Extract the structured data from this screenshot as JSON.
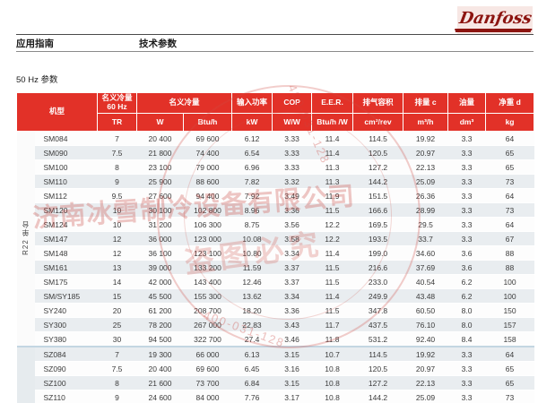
{
  "page": {
    "brand": "Danfoss",
    "breadcrumb_left": "应用指南",
    "breadcrumb_right": "技术参数",
    "section_title": "50 Hz 参数"
  },
  "table": {
    "group_label_r22": "R22 单台",
    "header": {
      "model": "机型",
      "nominal_60hz_line1": "名义冷量",
      "nominal_60hz_line2": "60 Hz",
      "nominal": "名义冷量",
      "input_power": "输入功率",
      "cop": "COP",
      "eer": "E.E.R.",
      "displacement_vol": "排气容积",
      "displacement": "排量 c",
      "oil": "油量",
      "net_weight": "净重 d",
      "units": {
        "tr": "TR",
        "w": "W",
        "btuh": "Btu/h",
        "kw": "kW",
        "ww": "W/W",
        "btuhw": "Btu/h /W",
        "cm3rev": "cm³/rev",
        "m3h": "m³/h",
        "dm3": "dm³",
        "kg": "kg"
      }
    },
    "rows": [
      {
        "group": "R22",
        "model": "SM084",
        "tr": "7",
        "w": "20 400",
        "btuh": "69 600",
        "kw": "6.12",
        "cop": "3.33",
        "eer": "11.4",
        "cm3": "114.5",
        "m3h": "19.92",
        "dm3": "3.3",
        "kg": "64"
      },
      {
        "group": "R22",
        "model": "SM090",
        "tr": "7.5",
        "w": "21 800",
        "btuh": "74 400",
        "kw": "6.54",
        "cop": "3.33",
        "eer": "11.4",
        "cm3": "120.5",
        "m3h": "20.97",
        "dm3": "3.3",
        "kg": "65"
      },
      {
        "group": "R22",
        "model": "SM100",
        "tr": "8",
        "w": "23 100",
        "btuh": "79 000",
        "kw": "6.96",
        "cop": "3.33",
        "eer": "11.3",
        "cm3": "127.2",
        "m3h": "22.13",
        "dm3": "3.3",
        "kg": "65"
      },
      {
        "group": "R22",
        "model": "SM110",
        "tr": "9",
        "w": "25 900",
        "btuh": "88 600",
        "kw": "7.82",
        "cop": "3.32",
        "eer": "11.3",
        "cm3": "144.2",
        "m3h": "25.09",
        "dm3": "3.3",
        "kg": "73"
      },
      {
        "group": "R22",
        "model": "SM112",
        "tr": "9.5",
        "w": "27 600",
        "btuh": "94 400",
        "kw": "7.92",
        "cop": "3.49",
        "eer": "11.9",
        "cm3": "151.5",
        "m3h": "26.36",
        "dm3": "3.3",
        "kg": "64"
      },
      {
        "group": "R22",
        "model": "SM120",
        "tr": "10",
        "w": "30 100",
        "btuh": "102 800",
        "kw": "8.96",
        "cop": "3.36",
        "eer": "11.5",
        "cm3": "166.6",
        "m3h": "28.99",
        "dm3": "3.3",
        "kg": "73"
      },
      {
        "group": "R22",
        "model": "SM124",
        "tr": "10",
        "w": "31 200",
        "btuh": "106 300",
        "kw": "8.75",
        "cop": "3.56",
        "eer": "12.2",
        "cm3": "169.5",
        "m3h": "29.5",
        "dm3": "3.3",
        "kg": "64"
      },
      {
        "group": "R22",
        "model": "SM147",
        "tr": "12",
        "w": "36 000",
        "btuh": "123 000",
        "kw": "10.08",
        "cop": "3.58",
        "eer": "12.2",
        "cm3": "193.5",
        "m3h": "33.7",
        "dm3": "3.3",
        "kg": "67"
      },
      {
        "group": "R22",
        "model": "SM148",
        "tr": "12",
        "w": "36 100",
        "btuh": "123 100",
        "kw": "10.80",
        "cop": "3.34",
        "eer": "11.4",
        "cm3": "199.0",
        "m3h": "34.60",
        "dm3": "3.6",
        "kg": "88"
      },
      {
        "group": "R22",
        "model": "SM161",
        "tr": "13",
        "w": "39 000",
        "btuh": "133 200",
        "kw": "11.59",
        "cop": "3.37",
        "eer": "11.5",
        "cm3": "216.6",
        "m3h": "37.69",
        "dm3": "3.6",
        "kg": "88"
      },
      {
        "group": "R22",
        "model": "SM175",
        "tr": "14",
        "w": "42 000",
        "btuh": "143 400",
        "kw": "12.46",
        "cop": "3.37",
        "eer": "11.5",
        "cm3": "233.0",
        "m3h": "40.54",
        "dm3": "6.2",
        "kg": "100"
      },
      {
        "group": "R22",
        "model": "SM/SY185",
        "tr": "15",
        "w": "45 500",
        "btuh": "155 300",
        "kw": "13.62",
        "cop": "3.34",
        "eer": "11.4",
        "cm3": "249.9",
        "m3h": "43.48",
        "dm3": "6.2",
        "kg": "100"
      },
      {
        "group": "R22",
        "model": "SY240",
        "tr": "20",
        "w": "61 200",
        "btuh": "208 700",
        "kw": "18.20",
        "cop": "3.36",
        "eer": "11.5",
        "cm3": "347.8",
        "m3h": "60.50",
        "dm3": "8.0",
        "kg": "150"
      },
      {
        "group": "R22",
        "model": "SY300",
        "tr": "25",
        "w": "78 200",
        "btuh": "267 000",
        "kw": "22.83",
        "cop": "3.43",
        "eer": "11.7",
        "cm3": "437.5",
        "m3h": "76.10",
        "dm3": "8.0",
        "kg": "157"
      },
      {
        "group": "R22",
        "model": "SY380",
        "tr": "30",
        "w": "94 500",
        "btuh": "322 700",
        "kw": "27.4",
        "cop": "3.46",
        "eer": "11.8",
        "cm3": "531.2",
        "m3h": "92.40",
        "dm3": "8.4",
        "kg": "158"
      },
      {
        "group": "SZ",
        "model": "SZ084",
        "tr": "7",
        "w": "19 300",
        "btuh": "66 000",
        "kw": "6.13",
        "cop": "3.15",
        "eer": "10.7",
        "cm3": "114.5",
        "m3h": "19.92",
        "dm3": "3.3",
        "kg": "64"
      },
      {
        "group": "SZ",
        "model": "SZ090",
        "tr": "7.5",
        "w": "20 400",
        "btuh": "69 600",
        "kw": "6.45",
        "cop": "3.16",
        "eer": "10.8",
        "cm3": "120.5",
        "m3h": "20.97",
        "dm3": "3.3",
        "kg": "65"
      },
      {
        "group": "SZ",
        "model": "SZ100",
        "tr": "8",
        "w": "21 600",
        "btuh": "73 700",
        "kw": "6.84",
        "cop": "3.15",
        "eer": "10.8",
        "cm3": "127.2",
        "m3h": "22.13",
        "dm3": "3.3",
        "kg": "65"
      },
      {
        "group": "SZ",
        "model": "SZ110",
        "tr": "9",
        "w": "24 600",
        "btuh": "84 000",
        "kw": "7.76",
        "cop": "3.17",
        "eer": "10.8",
        "cm3": "144.2",
        "m3h": "25.09",
        "dm3": "3.3",
        "kg": "73"
      }
    ]
  },
  "watermark": {
    "company": "济南冰雪制冷设备有限公司",
    "notice": "盗图必究",
    "phone": "400-031-128"
  }
}
